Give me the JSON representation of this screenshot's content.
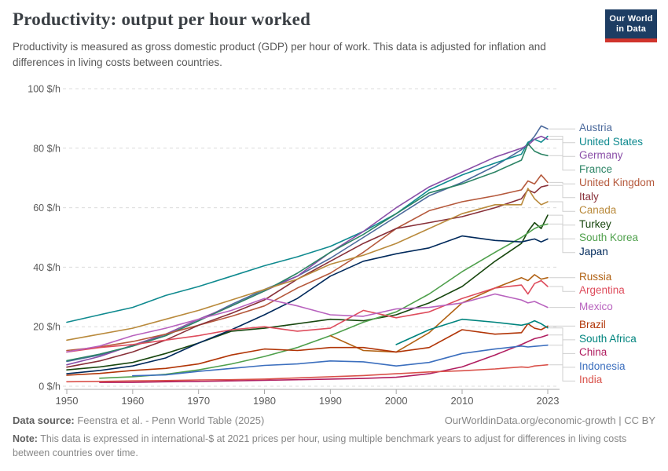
{
  "header": {
    "title": "Productivity: output per hour worked",
    "subtitle": "Productivity is measured as gross domestic product (GDP) per hour of work. This data is adjusted for inflation and differences in living costs between countries.",
    "logo": {
      "line1": "Our World",
      "line2": "in Data",
      "bg_color": "#1d3d63",
      "stripe_color": "#d0342c"
    }
  },
  "chart_data": {
    "type": "line",
    "title": "Productivity: output per hour worked",
    "xlabel": "",
    "ylabel": "$/h",
    "unit": "$/h",
    "grid": "horizontal-dashed",
    "legend_position": "right",
    "xlim": [
      1950,
      2023
    ],
    "ylim": [
      0,
      100
    ],
    "x_ticks": [
      1950,
      1960,
      1970,
      1980,
      1990,
      2000,
      2010,
      2023
    ],
    "x_tick_labels": [
      "1950",
      "1960",
      "1970",
      "1980",
      "1990",
      "2000",
      "2010",
      "2023"
    ],
    "y_ticks": [
      0,
      20,
      40,
      60,
      80,
      100
    ],
    "y_tick_labels": [
      "0 $/h",
      "20 $/h",
      "40 $/h",
      "60 $/h",
      "80 $/h",
      "100 $/h"
    ],
    "x": [
      1950,
      1955,
      1960,
      1965,
      1970,
      1975,
      1980,
      1985,
      1990,
      1995,
      2000,
      2005,
      2010,
      2015,
      2019,
      2020,
      2021,
      2022,
      2023
    ],
    "series": [
      {
        "name": "Austria",
        "color": "#4C6A9C",
        "values": [
          8.3,
          10.5,
          13.5,
          17,
          22,
          27.5,
          32.5,
          37,
          43,
          50,
          57,
          64,
          68.5,
          74,
          79.5,
          81.5,
          84,
          87.5,
          86.5
        ]
      },
      {
        "name": "United States",
        "color": "#0F8A8F",
        "values": [
          21.5,
          24,
          26.5,
          30.5,
          33.5,
          37,
          40.5,
          43.5,
          47,
          52,
          58,
          66,
          71,
          75,
          78,
          82,
          83,
          82,
          84
        ]
      },
      {
        "name": "Germany",
        "color": "#8A4FA8",
        "values": [
          7.2,
          10,
          13.8,
          17.5,
          22.5,
          27,
          32,
          37,
          45,
          52,
          60,
          67,
          72,
          77,
          80,
          81,
          83,
          84,
          83
        ]
      },
      {
        "name": "France",
        "color": "#2C8465",
        "values": [
          8.6,
          10.8,
          13.5,
          17,
          22,
          27,
          32,
          38,
          45,
          51,
          58,
          65,
          68,
          72,
          76,
          81.5,
          79,
          78,
          77.5
        ]
      },
      {
        "name": "United Kingdom",
        "color": "#B5593C",
        "values": [
          12,
          13.2,
          15,
          17.5,
          20.5,
          23.5,
          27,
          33,
          38,
          45,
          53,
          59,
          62,
          64,
          66,
          69,
          68,
          71,
          68.5
        ]
      },
      {
        "name": "Italy",
        "color": "#883039",
        "values": [
          6.4,
          8.5,
          11.5,
          15.5,
          20.5,
          24.5,
          29,
          36,
          42,
          48,
          53,
          55,
          57,
          60,
          63,
          66,
          65,
          67,
          67.5
        ]
      },
      {
        "name": "Canada",
        "color": "#B98A3C",
        "values": [
          15.5,
          17.5,
          19.5,
          22.5,
          25.5,
          29,
          32.5,
          36,
          41,
          44,
          48,
          53,
          58,
          61,
          61,
          66.5,
          63,
          61,
          62
        ]
      },
      {
        "name": "Turkey",
        "color": "#18470F",
        "values": [
          5.5,
          6.5,
          8,
          11,
          14.5,
          18.5,
          19.5,
          21,
          22.5,
          22,
          24,
          28,
          33.5,
          42,
          48,
          52,
          55,
          53,
          57.5
        ]
      },
      {
        "name": "South Korea",
        "color": "#4FA04C",
        "values": [
          null,
          2.7,
          3.2,
          4,
          5.5,
          7.5,
          10,
          13,
          17,
          21.5,
          25,
          31,
          38.5,
          45,
          50,
          51.5,
          53,
          54,
          54.5
        ]
      },
      {
        "name": "Japan",
        "color": "#00295B",
        "values": [
          4.2,
          5.3,
          6.8,
          9.5,
          14.5,
          19,
          24,
          29.5,
          37,
          42,
          44.5,
          46.5,
          50.5,
          49,
          48.5,
          49,
          49.5,
          48.5,
          49.5
        ]
      },
      {
        "name": "Russia",
        "color": "#B16214",
        "values": [
          null,
          null,
          null,
          null,
          null,
          null,
          null,
          null,
          17,
          12,
          11.5,
          18,
          28,
          33,
          36.5,
          35.5,
          37.5,
          36,
          36.5
        ]
      },
      {
        "name": "Argentina",
        "color": "#DE4C5C",
        "values": [
          11.5,
          13,
          14,
          15.5,
          17,
          19,
          20,
          18.5,
          19.5,
          25.5,
          23,
          25,
          29.5,
          33,
          34,
          31,
          34.5,
          35.5,
          33.5
        ]
      },
      {
        "name": "Mexico",
        "color": "#B862BE",
        "values": [
          11.5,
          13.5,
          17,
          19.5,
          22.5,
          25.5,
          29.5,
          27,
          24,
          23.5,
          26,
          26.5,
          28,
          31,
          29,
          28,
          28.5,
          27.5,
          26.5
        ]
      },
      {
        "name": "Brazil",
        "color": "#B13507",
        "values": [
          3.7,
          4.3,
          5.3,
          6,
          7.5,
          10.5,
          12.5,
          12,
          13,
          13,
          11.5,
          13,
          19,
          17.5,
          18,
          21,
          19.5,
          19,
          20.2
        ]
      },
      {
        "name": "South Africa",
        "color": "#00847E",
        "values": [
          null,
          null,
          null,
          null,
          null,
          null,
          null,
          null,
          null,
          null,
          14,
          19,
          22.5,
          21.5,
          20.5,
          21,
          22,
          21,
          19.6
        ]
      },
      {
        "name": "China",
        "color": "#B01E60",
        "values": [
          null,
          1.3,
          1.3,
          1.5,
          1.6,
          1.8,
          2,
          2.2,
          2.4,
          2.6,
          3,
          4.2,
          6.5,
          10.5,
          14,
          15,
          16,
          16.5,
          17.2
        ]
      },
      {
        "name": "Indonesia",
        "color": "#3C6FBE",
        "values": [
          null,
          null,
          3.5,
          3.8,
          5,
          6,
          7,
          7.5,
          8.5,
          8.2,
          6.8,
          8,
          11,
          12.5,
          13.5,
          13.2,
          13.4,
          13.6,
          13.8
        ]
      },
      {
        "name": "India",
        "color": "#D9514A",
        "values": [
          1.5,
          1.6,
          1.8,
          1.9,
          2.1,
          2.2,
          2.4,
          2.8,
          3.2,
          3.6,
          4.2,
          4.8,
          5.2,
          5.8,
          6.5,
          6.3,
          6.8,
          7,
          7.2
        ]
      }
    ]
  },
  "footer": {
    "data_source_label": "Data source:",
    "data_source_text": " Feenstra et al. - Penn World Table (2025)",
    "link_text": "OurWorldinData.org/economic-growth | CC BY",
    "note_label": "Note:",
    "note_text": " This data is expressed in international-$ at 2021 prices per hour, using multiple benchmark years to adjust for differences in living costs between countries over time."
  }
}
